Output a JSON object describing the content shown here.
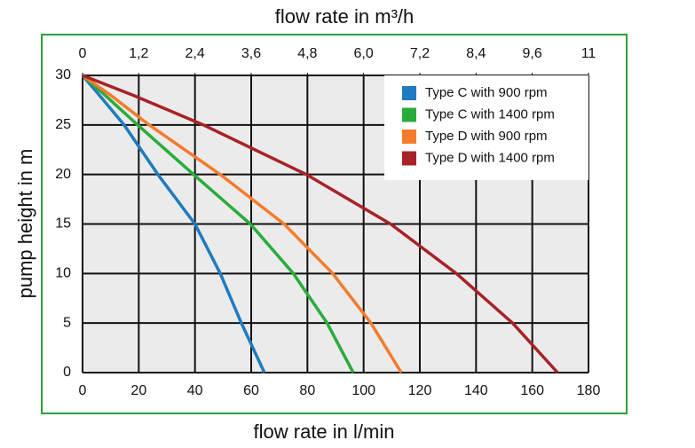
{
  "chart_data": {
    "type": "line",
    "xlabel": "flow rate in l/min",
    "x2label": "flow rate in m³/h",
    "ylabel": "pump height in m",
    "xlim": [
      0,
      180
    ],
    "xticks": [
      0,
      20,
      40,
      60,
      80,
      100,
      120,
      140,
      160,
      180
    ],
    "x2lim": [
      0,
      10.8
    ],
    "x2ticks": [
      0,
      {
        "value": 1.2,
        "label": "1,2"
      },
      {
        "value": 2.4,
        "label": "2,4"
      },
      {
        "value": 3.6,
        "label": "3,6"
      },
      {
        "value": 4.8,
        "label": "4,8"
      },
      {
        "value": 6.0,
        "label": "6,0"
      },
      {
        "value": 7.2,
        "label": "7,2"
      },
      {
        "value": 8.4,
        "label": "8,4"
      },
      {
        "value": 9.6,
        "label": "9,6"
      },
      {
        "value": 10.8,
        "label": "11"
      }
    ],
    "ylim": [
      0,
      30
    ],
    "yticks": [
      0,
      5,
      10,
      15,
      20,
      25,
      30
    ],
    "grid": true,
    "legend": "upper right",
    "series": [
      {
        "name": "Type C with 900 rpm",
        "color": "#1f7bbf",
        "x": [
          0,
          6,
          14.8,
          26.8,
          40,
          49,
          56.5,
          64.7
        ],
        "values": [
          30,
          28,
          25,
          20,
          15,
          10,
          5,
          0
        ]
      },
      {
        "name": "Type C with 1400 rpm",
        "color": "#2aac3b",
        "x": [
          0,
          8,
          19.6,
          39.5,
          59.7,
          75,
          87,
          96.3
        ],
        "values": [
          30,
          28,
          25,
          20,
          15,
          10,
          5,
          0
        ]
      },
      {
        "name": "Type D with 900 rpm",
        "color": "#f47c2c",
        "x": [
          0,
          10,
          23.7,
          49,
          71.7,
          89,
          102.6,
          113.4
        ],
        "values": [
          30,
          28,
          25,
          20,
          15,
          10,
          5,
          0
        ]
      },
      {
        "name": "Type D with 1400 rpm",
        "color": "#a82228",
        "x": [
          0,
          18,
          43,
          79.6,
          109.6,
          133,
          153,
          169
        ],
        "values": [
          30,
          28,
          25,
          20,
          15,
          10,
          5,
          0
        ]
      }
    ]
  }
}
